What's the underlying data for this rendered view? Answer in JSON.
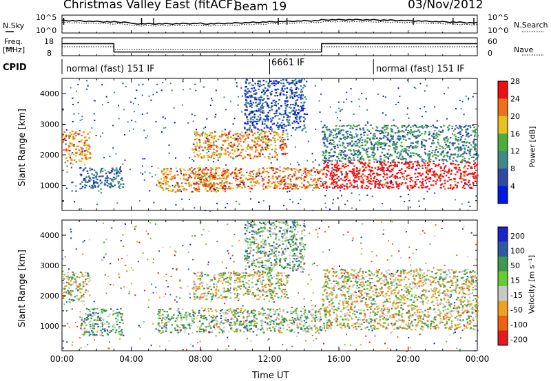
{
  "header": {
    "station": "Christmas Valley East (fitACF)",
    "beam": "Beam 19",
    "date": "03/Nov/2012"
  },
  "noise_panel": {
    "left_label": "N.Sky",
    "right_label": "N.Search",
    "left_ticks": [
      "10^5",
      "10^0"
    ],
    "right_ticks": [
      "10^5",
      "10^0"
    ]
  },
  "freq_panel": {
    "left_label_1": "Freq.",
    "left_label_2": "[MHz]",
    "right_label": "Nave",
    "left_ticks": [
      "18",
      "8"
    ],
    "right_ticks": [
      "60",
      "0"
    ],
    "freq_segments": [
      {
        "start_h": 0,
        "end_h": 3.0,
        "mhz": 15.5
      },
      {
        "start_h": 3.0,
        "end_h": 15.0,
        "mhz": 10.0
      },
      {
        "start_h": 15.0,
        "end_h": 24.0,
        "mhz": 15.5
      }
    ]
  },
  "cpid_panel": {
    "label": "CPID",
    "segments": [
      {
        "start_h": 0,
        "end_h": 12.0,
        "text": "normal (fast) 151 IF"
      },
      {
        "start_h": 12.0,
        "end_h": 18.0,
        "text": "6661 IF"
      },
      {
        "start_h": 18.0,
        "end_h": 24.0,
        "text": "normal (fast) 151 IF"
      }
    ]
  },
  "axes": {
    "xlabel": "Time UT",
    "ylabel": "Slant Range [km]",
    "x_ticks": [
      "00:00",
      "04:00",
      "08:00",
      "12:00",
      "16:00",
      "20:00",
      "00:00"
    ],
    "y_ticks": [
      "1000",
      "2000",
      "3000",
      "4000"
    ]
  },
  "power_scale": {
    "title": "Power [dB]",
    "labels": [
      "4",
      "8",
      "12",
      "16",
      "20",
      "24",
      "28"
    ],
    "colors": [
      "#0018e6",
      "#2b4ba6",
      "#3f8a86",
      "#4cae3a",
      "#e8c020",
      "#f07018",
      "#ee1010"
    ]
  },
  "velocity_scale": {
    "title": "Velocity [m s⁻¹]",
    "labels": [
      "200",
      "100",
      "50",
      "15",
      "-15",
      "-50",
      "-100",
      "-200"
    ],
    "colors": [
      "#1a24c8",
      "#2d5aa0",
      "#3c9a50",
      "#66cc33",
      "#c8c8c8",
      "#f0a020",
      "#f06010",
      "#e81818"
    ]
  },
  "chart_data": {
    "type": "heatmap",
    "title": "Christmas Valley East (fitACF) Beam 19 03/Nov/2012",
    "xlabel": "Time UT",
    "ylabel": "Slant Range [km]",
    "xlim_hours": [
      0,
      24
    ],
    "ylim_km": [
      180,
      4500
    ],
    "panels": [
      {
        "name": "Power [dB]",
        "range": [
          0,
          30
        ],
        "features": [
          {
            "start_h": 0.0,
            "end_h": 1.6,
            "range_start_km": 1700,
            "range_end_km": 2800,
            "value": 20
          },
          {
            "start_h": 1.0,
            "end_h": 3.5,
            "range_start_km": 900,
            "range_end_km": 1600,
            "value": 8
          },
          {
            "start_h": 5.5,
            "end_h": 9.5,
            "range_start_km": 800,
            "range_end_km": 1600,
            "value": 20
          },
          {
            "start_h": 7.5,
            "end_h": 15.0,
            "range_start_km": 900,
            "range_end_km": 1600,
            "value": 22
          },
          {
            "start_h": 7.5,
            "end_h": 13.0,
            "range_start_km": 1900,
            "range_end_km": 2800,
            "value": 20
          },
          {
            "start_h": 10.5,
            "end_h": 14.0,
            "range_start_km": 2800,
            "range_end_km": 4500,
            "value": 6
          },
          {
            "start_h": 15.0,
            "end_h": 24.0,
            "range_start_km": 900,
            "range_end_km": 1800,
            "value": 28
          },
          {
            "start_h": 15.0,
            "end_h": 24.0,
            "range_start_km": 1800,
            "range_end_km": 3000,
            "value": 10
          }
        ]
      },
      {
        "name": "Velocity [m s-1]",
        "range": [
          -200,
          200
        ],
        "features": [
          {
            "start_h": 0.0,
            "end_h": 1.6,
            "range_start_km": 1800,
            "range_end_km": 2800,
            "value": 0
          },
          {
            "start_h": 1.0,
            "end_h": 3.5,
            "range_start_km": 700,
            "range_end_km": 1600,
            "value": 40
          },
          {
            "start_h": 5.5,
            "end_h": 15.0,
            "range_start_km": 800,
            "range_end_km": 1600,
            "value": 30
          },
          {
            "start_h": 7.5,
            "end_h": 13.0,
            "range_start_km": 1900,
            "range_end_km": 2800,
            "value": 0
          },
          {
            "start_h": 10.5,
            "end_h": 14.0,
            "range_start_km": 2800,
            "range_end_km": 4500,
            "value": 40
          },
          {
            "start_h": 15.0,
            "end_h": 24.0,
            "range_start_km": 900,
            "range_end_km": 2900,
            "value": 0
          }
        ]
      }
    ]
  }
}
